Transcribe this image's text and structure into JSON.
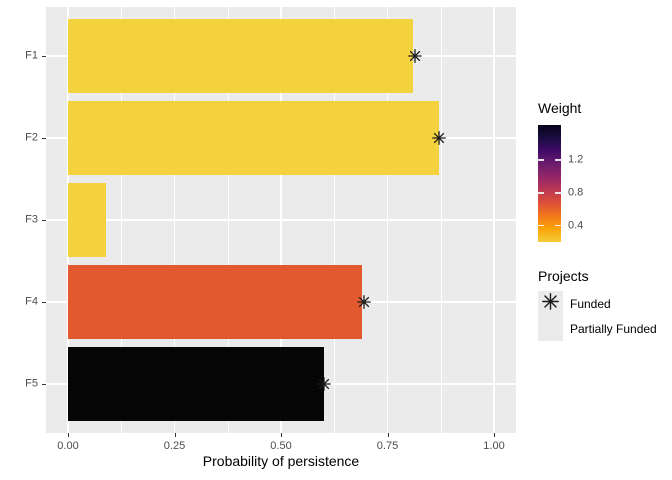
{
  "figure": {
    "background": "#FFFFFF",
    "panel_background": "#EBEBEB",
    "grid_color": "#FFFFFF",
    "tick_color": "#333333",
    "tick_label_color": "#4D4D4D"
  },
  "chart_data": {
    "type": "bar",
    "orientation": "horizontal",
    "title": "",
    "xlabel": "Probability of persistence",
    "ylabel": "",
    "categories": [
      "F1",
      "F2",
      "F3",
      "F4",
      "F5"
    ],
    "values": [
      0.81,
      0.87,
      0.09,
      0.69,
      0.6
    ],
    "bar_colors": [
      "#F4D23E",
      "#F4D23E",
      "#F4D23E",
      "#E2582F",
      "#060606"
    ],
    "bar_weights_approx": [
      0.3,
      0.3,
      0.3,
      0.7,
      1.6
    ],
    "funded": [
      true,
      true,
      false,
      true,
      true
    ],
    "marker_values": [
      0.814,
      0.872,
      null,
      0.695,
      0.6
    ],
    "marker_shape": "asterisk",
    "marker_color": "#1A1A1A",
    "xlim": [
      0,
      1
    ],
    "x_ticks": [
      {
        "value": 0,
        "label": "0.00"
      },
      {
        "value": 0.25,
        "label": "0.25"
      },
      {
        "value": 0.5,
        "label": "0.50"
      },
      {
        "value": 0.75,
        "label": "0.75"
      },
      {
        "value": 1,
        "label": "1.00"
      }
    ],
    "x_minor_ticks": [
      0.125,
      0.375,
      0.625,
      0.875
    ],
    "grid": "major+minor",
    "legend_position": "right"
  },
  "legend_weight": {
    "title": "Weight",
    "colorbar_top_to_bottom": [
      "#050417",
      "#1B0C42",
      "#420A68",
      "#6B1D6E",
      "#942667",
      "#BC3754",
      "#DD513A",
      "#F37819",
      "#FBA40A",
      "#F3CD3A"
    ],
    "ticks": [
      {
        "label": "1.2",
        "pos_from_top": 0.3
      },
      {
        "label": "0.8",
        "pos_from_top": 0.58
      },
      {
        "label": "0.4",
        "pos_from_top": 0.86
      }
    ]
  },
  "legend_projects": {
    "title": "Projects",
    "key_fill": "#EBEBEB",
    "items": [
      {
        "label": "Funded",
        "marker": "asterisk"
      },
      {
        "label": "Partially Funded",
        "marker": "none"
      }
    ]
  }
}
